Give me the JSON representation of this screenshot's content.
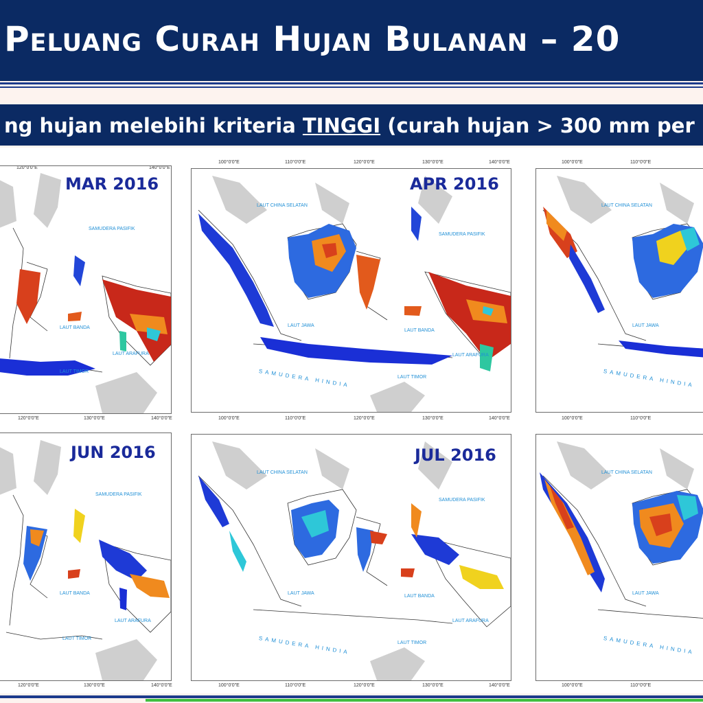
{
  "header": {
    "title": "Peluang Curah Hujan Bulanan – 20"
  },
  "subheader": {
    "text_before": "ng hujan melebihi kriteria ",
    "text_emph": "TINGGI",
    "text_after": " (curah hujan > 300 mm per"
  },
  "panels": [
    {
      "id": "mar",
      "label": "MAR 2016",
      "top_axis": [
        "120°0'0\"E",
        "140°0'0\"E"
      ],
      "bottom_axis": [
        "120°0'0\"E",
        "130°0'0\"E",
        "140°0'0\"E"
      ],
      "seas": [
        "SAMUDERA PASIFIK",
        "LAUT BANDA",
        "LAUT ARAFURA",
        "LAUT TIMOR"
      ],
      "ocean": ""
    },
    {
      "id": "apr",
      "label": "APR 2016",
      "top_axis": [
        "100°0'0\"E",
        "110°0'0\"E",
        "120°0'0\"E",
        "130°0'0\"E",
        "140°0'0\"E"
      ],
      "bottom_axis": [
        "100°0'0\"E",
        "110°0'0\"E",
        "120°0'0\"E",
        "130°0'0\"E",
        "140°0'0\"E"
      ],
      "seas": [
        "LAUT CHINA SELATAN",
        "SAMUDERA PASIFIK",
        "LAUT JAWA",
        "LAUT BANDA",
        "LAUT ARAFURA",
        "LAUT TIMOR"
      ],
      "ocean": "SAMUDERA HINDIA"
    },
    {
      "id": "may",
      "label": "",
      "top_axis": [
        "100°0'0\"E",
        "110°0'0\"E"
      ],
      "bottom_axis": [
        "100°0'0\"E",
        "110°0'0\"E"
      ],
      "seas": [
        "LAUT CHINA SELATAN",
        "LAUT JAWA"
      ],
      "ocean": "SAMUDERA HINDIA"
    },
    {
      "id": "jun",
      "label": "JUN 2016",
      "top_axis": [],
      "bottom_axis": [
        "120°0'0\"E",
        "130°0'0\"E",
        "140°0'0\"E"
      ],
      "seas": [
        "SAMUDERA PASIFIK",
        "LAUT BANDA",
        "LAUT ARAFURA",
        "LAUT TIMOR"
      ],
      "ocean": ""
    },
    {
      "id": "jul",
      "label": "JUL 2016",
      "top_axis": [],
      "bottom_axis": [
        "100°0'0\"E",
        "110°0'0\"E",
        "120°0'0\"E",
        "130°0'0\"E",
        "140°0'0\"E"
      ],
      "seas": [
        "LAUT CHINA SELATAN",
        "SAMUDERA PASIFIK",
        "LAUT JAWA",
        "LAUT BANDA",
        "LAUT ARAFURA",
        "LAUT TIMOR"
      ],
      "ocean": "SAMUDERA HINDIA"
    },
    {
      "id": "aug",
      "label": "",
      "top_axis": [],
      "bottom_axis": [
        "100°0'0\"E",
        "110°0'0\"E"
      ],
      "seas": [
        "LAUT CHINA SELATAN",
        "LAUT JAWA"
      ],
      "ocean": "SAMUDERA HINDIA"
    }
  ]
}
